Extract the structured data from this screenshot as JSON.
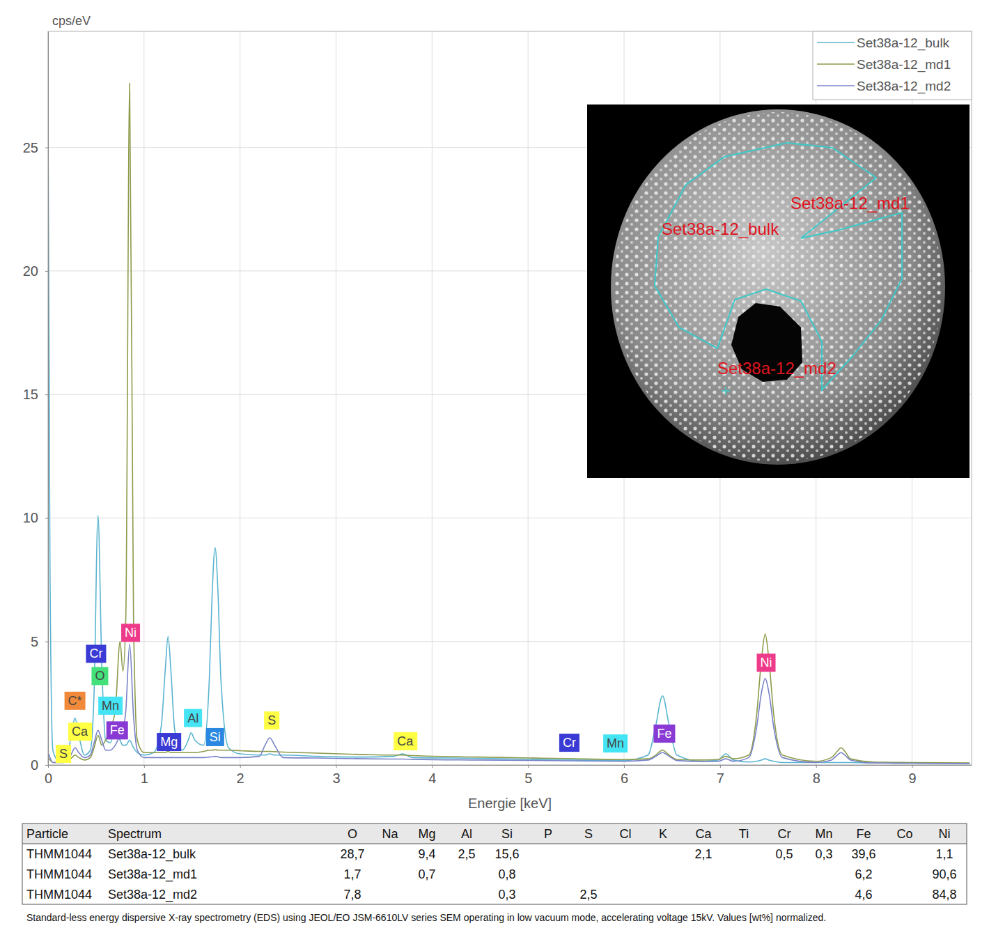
{
  "chart_data": {
    "type": "line",
    "y_label": "cps/eV",
    "x_label": "Energie [keV]",
    "xlim": [
      0,
      9.62
    ],
    "ylim": [
      0,
      29.7
    ],
    "xticks": [
      0,
      1,
      2,
      3,
      4,
      5,
      6,
      7,
      8,
      9
    ],
    "yticks": [
      0,
      5,
      10,
      15,
      20,
      25
    ],
    "grid": true,
    "legend": "top-right",
    "x": [
      0,
      0.02,
      0.05,
      0.1,
      0.15,
      0.2,
      0.25,
      0.28,
      0.32,
      0.38,
      0.44,
      0.48,
      0.52,
      0.56,
      0.6,
      0.65,
      0.7,
      0.75,
      0.78,
      0.81,
      0.85,
      0.89,
      0.93,
      1.0,
      1.1,
      1.18,
      1.22,
      1.25,
      1.28,
      1.32,
      1.4,
      1.46,
      1.49,
      1.53,
      1.62,
      1.68,
      1.71,
      1.74,
      1.77,
      1.8,
      1.88,
      2.0,
      2.2,
      2.26,
      2.31,
      2.36,
      2.45,
      2.8,
      3.3,
      3.6,
      3.69,
      3.8,
      4.5,
      5.4,
      6.0,
      6.25,
      6.33,
      6.4,
      6.47,
      6.55,
      6.8,
      6.98,
      7.06,
      7.14,
      7.3,
      7.38,
      7.43,
      7.47,
      7.51,
      7.56,
      7.65,
      8.0,
      8.16,
      8.22,
      8.26,
      8.3,
      8.36,
      8.6,
      9.0,
      9.6
    ],
    "series": [
      {
        "name": "Set38a-12_bulk",
        "color": "#5ab4d0",
        "values": [
          26.0,
          8.0,
          0.6,
          0.2,
          0.15,
          0.4,
          1.4,
          1.9,
          1.2,
          0.4,
          0.6,
          3.0,
          10.1,
          4.0,
          1.0,
          0.9,
          1.5,
          1.0,
          0.8,
          0.8,
          1.0,
          0.7,
          0.5,
          0.4,
          0.5,
          1.6,
          3.8,
          5.2,
          3.8,
          1.4,
          0.6,
          1.0,
          1.3,
          1.0,
          0.8,
          3.5,
          7.0,
          8.8,
          7.0,
          3.5,
          0.7,
          0.45,
          0.4,
          0.4,
          0.45,
          0.4,
          0.4,
          0.35,
          0.32,
          0.35,
          0.45,
          0.3,
          0.27,
          0.2,
          0.18,
          0.4,
          1.6,
          2.8,
          1.6,
          0.4,
          0.15,
          0.2,
          0.45,
          0.2,
          0.12,
          0.15,
          0.2,
          0.25,
          0.2,
          0.15,
          0.1,
          0.1,
          0.1,
          0.1,
          0.1,
          0.1,
          0.1,
          0.08,
          0.07,
          0.06
        ]
      },
      {
        "name": "Set38a-12_md1",
        "color": "#8c9b4a",
        "values": [
          0.3,
          0.2,
          0.1,
          0.1,
          0.1,
          0.15,
          0.3,
          0.4,
          0.3,
          0.2,
          0.3,
          0.7,
          1.2,
          0.8,
          1.0,
          1.5,
          2.2,
          5.0,
          3.8,
          6.0,
          27.6,
          6.0,
          1.0,
          0.5,
          0.5,
          0.5,
          0.5,
          0.55,
          0.5,
          0.5,
          0.5,
          0.5,
          0.5,
          0.5,
          0.55,
          0.6,
          0.6,
          0.62,
          0.6,
          0.6,
          0.6,
          0.58,
          0.55,
          0.55,
          0.55,
          0.54,
          0.52,
          0.48,
          0.42,
          0.4,
          0.4,
          0.38,
          0.32,
          0.26,
          0.22,
          0.25,
          0.4,
          0.6,
          0.4,
          0.22,
          0.2,
          0.22,
          0.35,
          0.25,
          0.4,
          2.0,
          4.2,
          5.3,
          4.2,
          2.0,
          0.4,
          0.15,
          0.3,
          0.55,
          0.7,
          0.55,
          0.25,
          0.12,
          0.1,
          0.08
        ]
      },
      {
        "name": "Set38a-12_md2",
        "color": "#7882c8",
        "values": [
          0.5,
          0.3,
          0.1,
          0.1,
          0.1,
          0.15,
          0.5,
          0.7,
          0.5,
          0.3,
          0.4,
          0.9,
          1.4,
          1.0,
          0.6,
          0.6,
          0.8,
          1.2,
          1.4,
          2.2,
          4.9,
          2.0,
          0.6,
          0.3,
          0.3,
          0.3,
          0.3,
          0.3,
          0.3,
          0.3,
          0.3,
          0.3,
          0.3,
          0.3,
          0.3,
          0.32,
          0.33,
          0.35,
          0.33,
          0.3,
          0.3,
          0.3,
          0.35,
          0.8,
          1.1,
          0.8,
          0.3,
          0.28,
          0.25,
          0.24,
          0.24,
          0.23,
          0.2,
          0.17,
          0.15,
          0.2,
          0.35,
          0.5,
          0.35,
          0.18,
          0.14,
          0.15,
          0.25,
          0.15,
          0.3,
          1.5,
          2.9,
          3.5,
          2.9,
          1.5,
          0.3,
          0.1,
          0.2,
          0.4,
          0.5,
          0.4,
          0.2,
          0.08,
          0.07,
          0.06
        ]
      }
    ],
    "annotations": [
      {
        "text": "S",
        "x": 0.16,
        "y": 0.45,
        "color": "#ffff44"
      },
      {
        "text": "Ca",
        "x": 0.33,
        "y": 1.35,
        "color": "#ffff44"
      },
      {
        "text": "C*",
        "x": 0.28,
        "y": 2.6,
        "color": "#f08a3a"
      },
      {
        "text": "Mn",
        "x": 0.65,
        "y": 2.4,
        "color": "#44e4f4"
      },
      {
        "text": "O",
        "x": 0.54,
        "y": 3.6,
        "color": "#44e07a"
      },
      {
        "text": "Cr",
        "x": 0.5,
        "y": 4.5,
        "color": "#3a3ad4"
      },
      {
        "text": "Fe",
        "x": 0.72,
        "y": 1.4,
        "color": "#8a3ad4"
      },
      {
        "text": "Ni",
        "x": 0.86,
        "y": 5.35,
        "color": "#ee3a8a"
      },
      {
        "text": "Mg",
        "x": 1.26,
        "y": 0.93,
        "color": "#3a3ad4"
      },
      {
        "text": "Al",
        "x": 1.51,
        "y": 1.9,
        "color": "#44e4f4"
      },
      {
        "text": "Si",
        "x": 1.74,
        "y": 1.13,
        "color": "#2a88e0"
      },
      {
        "text": "S",
        "x": 2.33,
        "y": 1.8,
        "color": "#ffff44"
      },
      {
        "text": "Ca",
        "x": 3.72,
        "y": 0.96,
        "color": "#ffff44"
      },
      {
        "text": "Cr",
        "x": 5.43,
        "y": 0.9,
        "color": "#3a3ad4"
      },
      {
        "text": "Mn",
        "x": 5.91,
        "y": 0.87,
        "color": "#44e4f4"
      },
      {
        "text": "Fe",
        "x": 6.42,
        "y": 1.27,
        "color": "#8a3ad4"
      },
      {
        "text": "Ni",
        "x": 7.48,
        "y": 4.14,
        "color": "#ee3a8a"
      }
    ]
  },
  "inset": {
    "labels": [
      "Set38a-12_md1",
      "Set38a-12_bulk",
      "Set38a-12_md2"
    ]
  },
  "table": {
    "columns": [
      "Particle",
      "Spectrum",
      "O",
      "Na",
      "Mg",
      "Al",
      "Si",
      "P",
      "S",
      "Cl",
      "K",
      "Ca",
      "Ti",
      "Cr",
      "Mn",
      "Fe",
      "Co",
      "Ni"
    ],
    "rows": [
      [
        "THMM1044",
        "Set38a-12_bulk",
        "28,7",
        null,
        "9,4",
        "2,5",
        "15,6",
        null,
        null,
        null,
        null,
        "2,1",
        null,
        "0,5",
        "0,3",
        "39,6",
        null,
        "1,1"
      ],
      [
        "THMM1044",
        "Set38a-12_md1",
        "1,7",
        null,
        "0,7",
        null,
        "0,8",
        null,
        null,
        null,
        null,
        null,
        null,
        null,
        null,
        "6,2",
        null,
        "90,6"
      ],
      [
        "THMM1044",
        "Set38a-12_md2",
        "7,8",
        null,
        null,
        null,
        "0,3",
        null,
        "2,5",
        null,
        null,
        null,
        null,
        null,
        null,
        "4,6",
        null,
        "84,8"
      ]
    ],
    "caption": "Standard-less energy dispersive X-ray spectrometry (EDS) using JEOL/EO JSM-6610LV series SEM operating in low vacuum mode, accelerating voltage 15kV. Values [wt%] normalized."
  }
}
